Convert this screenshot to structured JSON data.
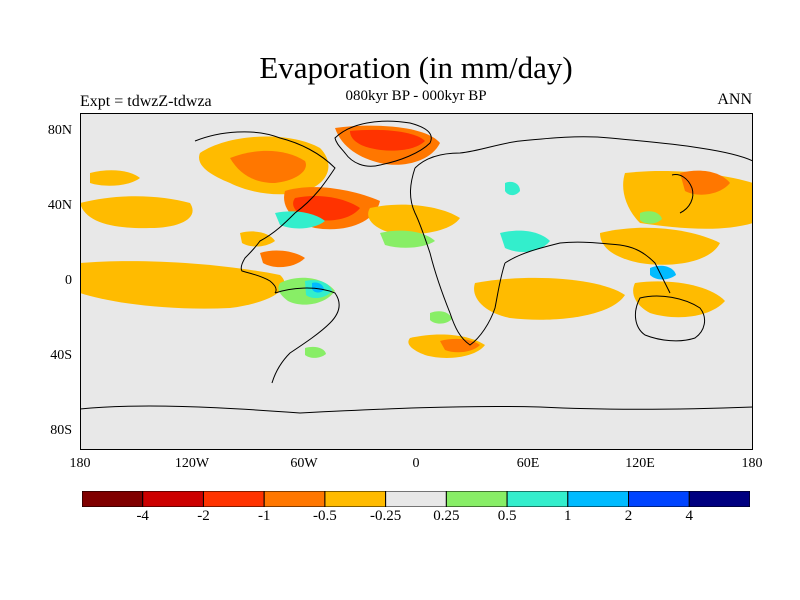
{
  "title": "Evaporation (in mm/day)",
  "subtitle": "080kyr BP - 000kyr BP",
  "left_label": "Expt = tdwzZ-tdwza",
  "right_label": "ANN",
  "lat_labels": [
    "80N",
    "40N",
    "0",
    "40S",
    "80S"
  ],
  "lon_labels": [
    "180",
    "120W",
    "60W",
    "0",
    "60E",
    "120E",
    "180"
  ],
  "colorbar": {
    "colors": [
      "#800000",
      "#cc0000",
      "#ff3300",
      "#ff7700",
      "#ffbb00",
      "#e8e8e8",
      "#88ee66",
      "#33eecc",
      "#00bbff",
      "#0044ff",
      "#000080"
    ],
    "tick_labels": [
      "-4",
      "-2",
      "-1",
      "-0.5",
      "-0.25",
      "0.25",
      "0.5",
      "1",
      "2",
      "4"
    ]
  },
  "colors": {
    "background_fill": "#e8e8e8",
    "coastline": "#000000"
  }
}
